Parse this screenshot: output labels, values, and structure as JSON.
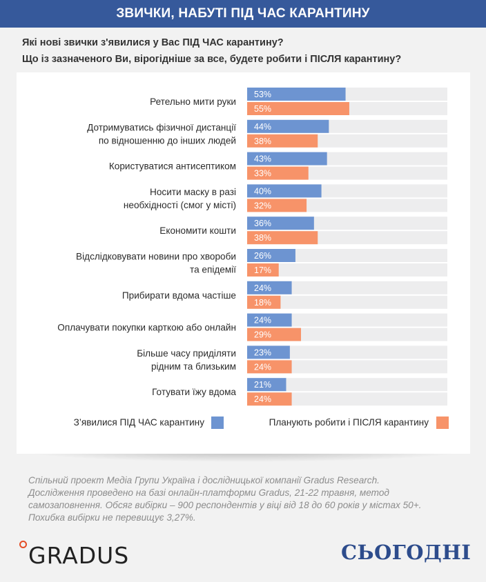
{
  "banner_title": "ЗВИЧКИ, НАБУТІ ПІД ЧАС КАРАНТИНУ",
  "questions": [
    "Які нові звички з'явилися у Вас ПІД ЧАС карантину?",
    "Що із зазначеного Ви, вірогідніше за все, будете робити і ПІСЛЯ карантину?"
  ],
  "colors": {
    "banner": "#36599b",
    "during": "#6d94d1",
    "after": "#f79369",
    "track": "#ededee"
  },
  "chart_data": {
    "type": "bar",
    "orientation": "horizontal",
    "xlim": [
      0,
      100
    ],
    "value_suffix": "%",
    "grid": false,
    "legend_position": "bottom",
    "categories": [
      [
        "Ретельно мити руки"
      ],
      [
        "Дотримуватись фізичної дистанції",
        "по відношенню до інших людей"
      ],
      [
        "Користуватися антисептиком"
      ],
      [
        "Носити маску в разі",
        "необхідності (смог у місті)"
      ],
      [
        "Економити кошти"
      ],
      [
        "Відслідковувати новини про хвороби",
        "та епідемії"
      ],
      [
        "Прибирати вдома частіше"
      ],
      [
        "Оплачувати покупки карткою або онлайн"
      ],
      [
        "Більше часу приділяти",
        "рідним та  близьким"
      ],
      [
        "Готувати їжу вдома"
      ]
    ],
    "series": [
      {
        "name": "З’явилися ПІД ЧАС карантину",
        "values": [
          53,
          44,
          43,
          40,
          36,
          26,
          24,
          24,
          23,
          21
        ]
      },
      {
        "name": "Планують робити і ПІСЛЯ карантину",
        "values": [
          55,
          38,
          33,
          32,
          38,
          17,
          18,
          29,
          24,
          24
        ]
      }
    ]
  },
  "footnote": [
    "Спільний проект Медіа Групи Україна і дослідницької компанії Gradus Research.",
    "Дослідження проведено на базі онлайн-платформи Gradus, 21-22 травня, метод",
    "самозаповнення. Обсяг вибірки – 900 респондентів у віці від 18 до 60 років у містах 50+.",
    "Похибка вибірки не перевищує 3,27%."
  ],
  "logos": {
    "gradus": "GRADUS",
    "sogodni": "СЬОГОДНІ"
  }
}
